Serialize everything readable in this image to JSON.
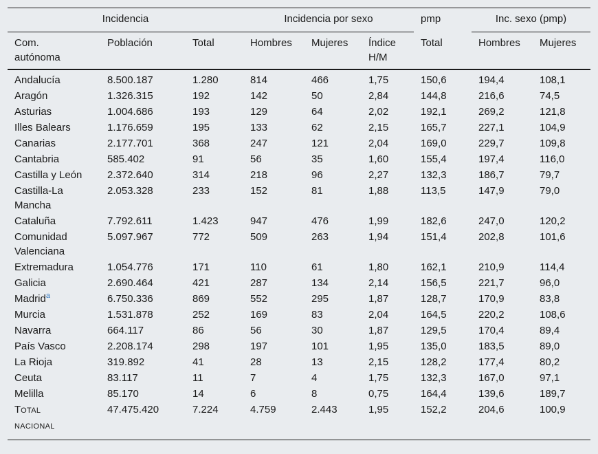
{
  "header": {
    "group": {
      "incidencia": "Incidencia",
      "incidencia_sexo": "Incidencia por sexo",
      "pmp": "pmp",
      "inc_sexo_pmp": "Inc. sexo (pmp)"
    },
    "columns": {
      "com_line1": "Com.",
      "com_line2": "autónoma",
      "poblacion": "Población",
      "total": "Total",
      "hombres": "Hombres",
      "mujeres": "Mujeres",
      "indice_line1": "Índice",
      "indice_line2": "H/M",
      "pmp_total": "Total",
      "pmp_hombres": "Hombres",
      "pmp_mujeres": "Mujeres"
    }
  },
  "rows": [
    {
      "com": "Andalucía",
      "poblacion": "8.500.187",
      "total": "1.280",
      "hombres": "814",
      "mujeres": "466",
      "indice": "1,75",
      "pmp_total": "150,6",
      "pmp_hombres": "194,4",
      "pmp_mujeres": "108,1"
    },
    {
      "com": "Aragón",
      "poblacion": "1.326.315",
      "total": "192",
      "hombres": "142",
      "mujeres": "50",
      "indice": "2,84",
      "pmp_total": "144,8",
      "pmp_hombres": "216,6",
      "pmp_mujeres": "74,5"
    },
    {
      "com": "Asturias",
      "poblacion": "1.004.686",
      "total": "193",
      "hombres": "129",
      "mujeres": "64",
      "indice": "2,02",
      "pmp_total": "192,1",
      "pmp_hombres": "269,2",
      "pmp_mujeres": "121,8"
    },
    {
      "com": "Illes Balears",
      "poblacion": "1.176.659",
      "total": "195",
      "hombres": "133",
      "mujeres": "62",
      "indice": "2,15",
      "pmp_total": "165,7",
      "pmp_hombres": "227,1",
      "pmp_mujeres": "104,9"
    },
    {
      "com": "Canarias",
      "poblacion": "2.177.701",
      "total": "368",
      "hombres": "247",
      "mujeres": "121",
      "indice": "2,04",
      "pmp_total": "169,0",
      "pmp_hombres": "229,7",
      "pmp_mujeres": "109,8"
    },
    {
      "com": "Cantabria",
      "poblacion": "585.402",
      "total": "91",
      "hombres": "56",
      "mujeres": "35",
      "indice": "1,60",
      "pmp_total": "155,4",
      "pmp_hombres": "197,4",
      "pmp_mujeres": "116,0"
    },
    {
      "com": "Castilla y León",
      "poblacion": "2.372.640",
      "total": "314",
      "hombres": "218",
      "mujeres": "96",
      "indice": "2,27",
      "pmp_total": "132,3",
      "pmp_hombres": "186,7",
      "pmp_mujeres": "79,7"
    },
    {
      "com": "Castilla-La Mancha",
      "poblacion": "2.053.328",
      "total": "233",
      "hombres": "152",
      "mujeres": "81",
      "indice": "1,88",
      "pmp_total": "113,5",
      "pmp_hombres": "147,9",
      "pmp_mujeres": "79,0"
    },
    {
      "com": "Cataluña",
      "poblacion": "7.792.611",
      "total": "1.423",
      "hombres": "947",
      "mujeres": "476",
      "indice": "1,99",
      "pmp_total": "182,6",
      "pmp_hombres": "247,0",
      "pmp_mujeres": "120,2"
    },
    {
      "com": "Comunidad Valenciana",
      "poblacion": "5.097.967",
      "total": "772",
      "hombres": "509",
      "mujeres": "263",
      "indice": "1,94",
      "pmp_total": "151,4",
      "pmp_hombres": "202,8",
      "pmp_mujeres": "101,6"
    },
    {
      "com": "Extremadura",
      "poblacion": "1.054.776",
      "total": "171",
      "hombres": "110",
      "mujeres": "61",
      "indice": "1,80",
      "pmp_total": "162,1",
      "pmp_hombres": "210,9",
      "pmp_mujeres": "114,4"
    },
    {
      "com": "Galicia",
      "poblacion": "2.690.464",
      "total": "421",
      "hombres": "287",
      "mujeres": "134",
      "indice": "2,14",
      "pmp_total": "156,5",
      "pmp_hombres": "221,7",
      "pmp_mujeres": "96,0"
    },
    {
      "com": "Madrid",
      "com_note": "a",
      "poblacion": "6.750.336",
      "total": "869",
      "hombres": "552",
      "mujeres": "295",
      "indice": "1,87",
      "pmp_total": "128,7",
      "pmp_hombres": "170,9",
      "pmp_mujeres": "83,8"
    },
    {
      "com": "Murcia",
      "poblacion": "1.531.878",
      "total": "252",
      "hombres": "169",
      "mujeres": "83",
      "indice": "2,04",
      "pmp_total": "164,5",
      "pmp_hombres": "220,2",
      "pmp_mujeres": "108,6"
    },
    {
      "com": "Navarra",
      "poblacion": "664.117",
      "total": "86",
      "hombres": "56",
      "mujeres": "30",
      "indice": "1,87",
      "pmp_total": "129,5",
      "pmp_hombres": "170,4",
      "pmp_mujeres": "89,4"
    },
    {
      "com": "País Vasco",
      "poblacion": "2.208.174",
      "total": "298",
      "hombres": "197",
      "mujeres": "101",
      "indice": "1,95",
      "pmp_total": "135,0",
      "pmp_hombres": "183,5",
      "pmp_mujeres": "89,0"
    },
    {
      "com": "La Rioja",
      "poblacion": "319.892",
      "total": "41",
      "hombres": "28",
      "mujeres": "13",
      "indice": "2,15",
      "pmp_total": "128,2",
      "pmp_hombres": "177,4",
      "pmp_mujeres": "80,2"
    },
    {
      "com": "Ceuta",
      "poblacion": "83.117",
      "total": "11",
      "hombres": "7",
      "mujeres": "4",
      "indice": "1,75",
      "pmp_total": "132,3",
      "pmp_hombres": "167,0",
      "pmp_mujeres": "97,1"
    }
  ],
  "melilla": {
    "com": "Melilla",
    "poblacion": "85.170",
    "total": "14",
    "hombres": "6",
    "mujeres": "8",
    "indice": "0,75",
    "pmp_total": "164,4",
    "pmp_hombres": "139,6",
    "pmp_mujeres": "189,7"
  },
  "total_row": {
    "com_first": "T",
    "com_rest": "OTAL",
    "com_line2": "NACIONAL",
    "poblacion": "47.475.420",
    "total": "7.224",
    "hombres": "4.759",
    "mujeres": "2.443",
    "indice": "1,95",
    "pmp_total": "152,2",
    "pmp_hombres": "204,6",
    "pmp_mujeres": "100,9"
  },
  "colors": {
    "background": "#e9ecef",
    "text": "#1a1a1a",
    "link": "#3b7fc4"
  }
}
